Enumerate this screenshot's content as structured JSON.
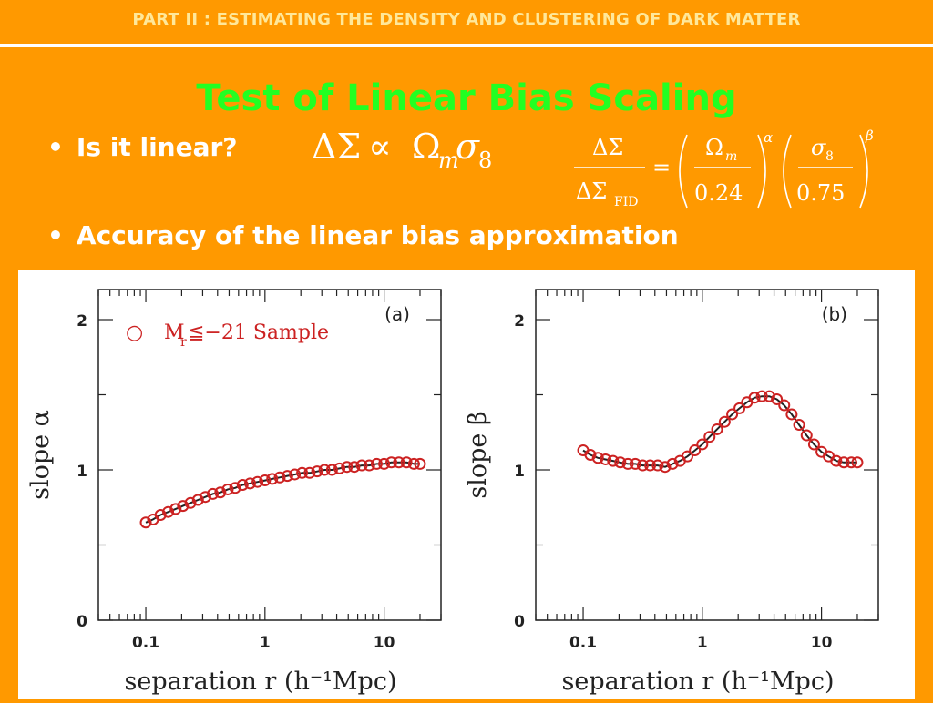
{
  "header": {
    "text": "PART II : ESTIMATING THE DENSITY AND CLUSTERING OF DARK MATTER"
  },
  "title": "Test of Linear Bias Scaling",
  "bullets": [
    {
      "text": "Is it linear?"
    },
    {
      "text": "Accuracy of the linear bias approximation"
    }
  ],
  "formula_proportional": {
    "lhs": "ΔΣ",
    "rel": "∝",
    "omega": "Ω",
    "omega_sub": "m",
    "sigma": "σ",
    "sigma_sub": "8"
  },
  "formula_scaling": {
    "num": "ΔΣ",
    "den": "ΔΣ",
    "den_sub": "FID",
    "eq": "=",
    "f1_num": "Ω",
    "f1_num_sub": "m",
    "f1_den": "0.24",
    "f1_exp": "α",
    "f2_num": "σ",
    "f2_num_sub": "8",
    "f2_den": "0.75",
    "f2_exp": "β"
  },
  "colors": {
    "background": "#FF9900",
    "header_text": "#FFE89A",
    "title": "#22FF22",
    "bullet": "#FFFFFF",
    "marker": "#CC2222",
    "line": "#222222"
  },
  "chart_data": [
    {
      "type": "scatter",
      "panel_label": "(a)",
      "xlabel": "separation r (h⁻¹Mpc)",
      "ylabel": "slope α",
      "xscale": "log",
      "xlim": [
        0.04,
        30
      ],
      "ylim": [
        0,
        2.2
      ],
      "xticklabels": [
        "0.1",
        "1",
        "10"
      ],
      "xticks": [
        0.1,
        1,
        10
      ],
      "yticklabels": [
        "0",
        "1",
        "2"
      ],
      "yticks": [
        0,
        1,
        2
      ],
      "legend": {
        "marker": "○",
        "label": "M",
        "label_sub": "r",
        "label_rest": "≦−21 Sample",
        "placement": "top-left"
      },
      "series": [
        {
          "x": [
            0.1,
            0.115,
            0.133,
            0.154,
            0.178,
            0.205,
            0.237,
            0.274,
            0.316,
            0.365,
            0.422,
            0.487,
            0.562,
            0.649,
            0.75,
            0.866,
            1.0,
            1.15,
            1.33,
            1.54,
            1.78,
            2.05,
            2.37,
            2.74,
            3.16,
            3.65,
            4.22,
            4.87,
            5.62,
            6.49,
            7.5,
            8.66,
            10.0,
            11.5,
            13.3,
            15.4,
            17.8,
            20.0
          ],
          "y": [
            0.65,
            0.67,
            0.7,
            0.72,
            0.74,
            0.76,
            0.78,
            0.8,
            0.82,
            0.84,
            0.85,
            0.87,
            0.88,
            0.9,
            0.91,
            0.92,
            0.93,
            0.94,
            0.95,
            0.96,
            0.97,
            0.98,
            0.98,
            0.99,
            1.0,
            1.0,
            1.01,
            1.02,
            1.02,
            1.03,
            1.03,
            1.04,
            1.04,
            1.05,
            1.05,
            1.05,
            1.04,
            1.04
          ]
        }
      ]
    },
    {
      "type": "scatter",
      "panel_label": "(b)",
      "xlabel": "separation r (h⁻¹Mpc)",
      "ylabel": "slope β",
      "xscale": "log",
      "xlim": [
        0.04,
        30
      ],
      "ylim": [
        0,
        2.2
      ],
      "xticklabels": [
        "0.1",
        "1",
        "10"
      ],
      "xticks": [
        0.1,
        1,
        10
      ],
      "yticklabels": [
        "0",
        "1",
        "2"
      ],
      "yticks": [
        0,
        1,
        2
      ],
      "series": [
        {
          "x": [
            0.1,
            0.115,
            0.133,
            0.154,
            0.178,
            0.205,
            0.237,
            0.274,
            0.316,
            0.365,
            0.422,
            0.487,
            0.562,
            0.649,
            0.75,
            0.866,
            1.0,
            1.15,
            1.33,
            1.54,
            1.78,
            2.05,
            2.37,
            2.74,
            3.16,
            3.65,
            4.22,
            4.87,
            5.62,
            6.49,
            7.5,
            8.66,
            10.0,
            11.5,
            13.3,
            15.4,
            17.8,
            20.0
          ],
          "y": [
            1.13,
            1.1,
            1.08,
            1.07,
            1.06,
            1.05,
            1.04,
            1.04,
            1.03,
            1.03,
            1.03,
            1.02,
            1.04,
            1.06,
            1.09,
            1.13,
            1.17,
            1.22,
            1.27,
            1.32,
            1.37,
            1.41,
            1.45,
            1.48,
            1.49,
            1.49,
            1.47,
            1.43,
            1.37,
            1.3,
            1.23,
            1.17,
            1.12,
            1.09,
            1.06,
            1.05,
            1.05,
            1.05
          ]
        }
      ]
    }
  ]
}
